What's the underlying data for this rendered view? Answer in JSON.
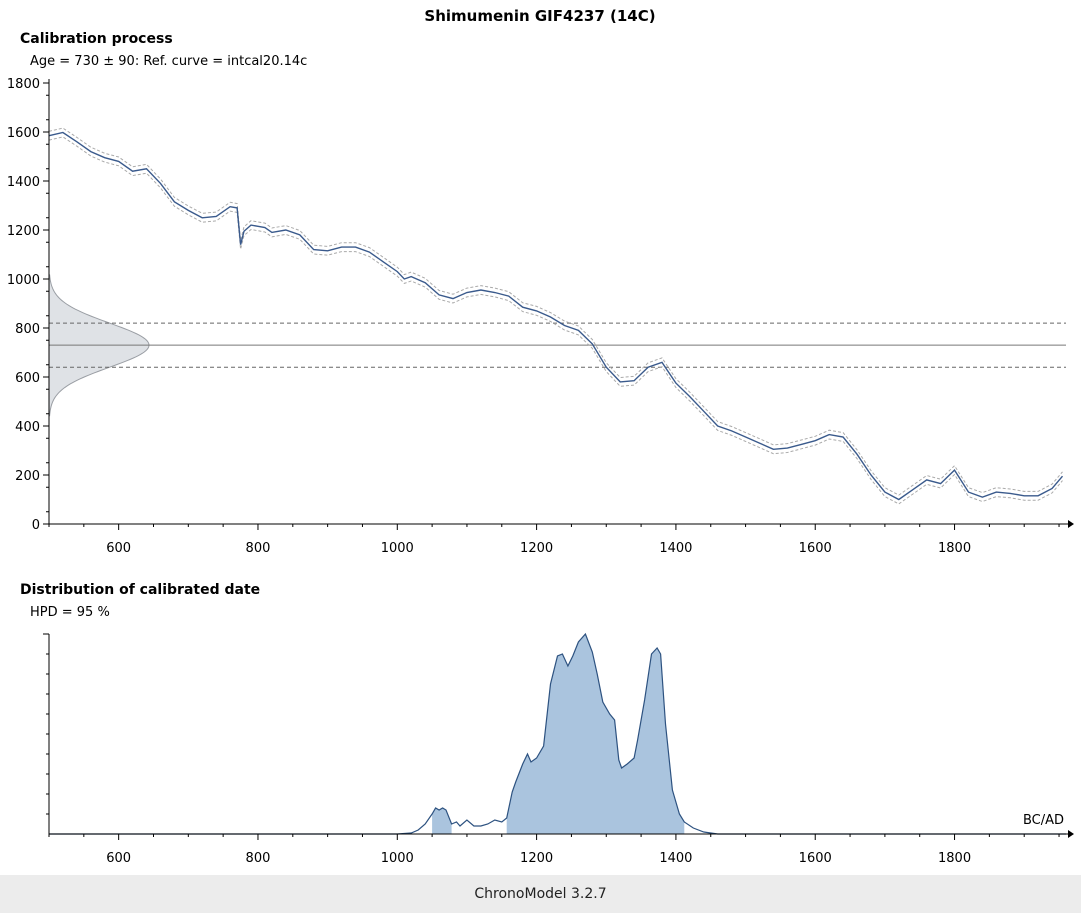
{
  "title": "Shimumenin GIF4237 (14C)",
  "footer": "ChronoModel 3.2.7",
  "axis_unit": "BC/AD",
  "colors": {
    "curve": "#3a5a8c",
    "density_fill": "#aac4de",
    "density_line": "#2d5280",
    "gauss_fill": "#dfe2e6",
    "axis": "#000000",
    "dash": "#666666",
    "curve_band": "#aaaaaa"
  },
  "chart_data": [
    {
      "type": "line",
      "title": "Calibration process",
      "subtitle": "Age = 730  ± 90: Ref. curve = intcal20.14c",
      "xlim": [
        500,
        1960
      ],
      "ylim": [
        0,
        1800
      ],
      "xticks": [
        600,
        800,
        1000,
        1200,
        1400,
        1600,
        1800
      ],
      "yticks": [
        0,
        200,
        400,
        600,
        800,
        1000,
        1200,
        1400,
        1600,
        1800
      ],
      "grid": false,
      "measured_age": 730,
      "age_error": 90,
      "age_bounds": [
        640,
        820
      ],
      "series": [
        {
          "x": [
            500,
            520,
            540,
            560,
            580,
            600,
            620,
            640,
            660,
            680,
            700,
            720,
            740,
            760,
            770,
            775,
            780,
            790,
            800,
            810,
            820,
            840,
            860,
            880,
            900,
            920,
            940,
            960,
            980,
            1000,
            1010,
            1020,
            1040,
            1060,
            1080,
            1100,
            1120,
            1140,
            1160,
            1180,
            1200,
            1220,
            1240,
            1260,
            1280,
            1300,
            1320,
            1340,
            1360,
            1380,
            1400,
            1420,
            1440,
            1460,
            1480,
            1500,
            1520,
            1540,
            1560,
            1580,
            1600,
            1620,
            1640,
            1660,
            1680,
            1700,
            1720,
            1740,
            1760,
            1780,
            1800,
            1820,
            1840,
            1860,
            1880,
            1900,
            1920,
            1940,
            1955
          ],
          "y": [
            1585,
            1598,
            1560,
            1520,
            1495,
            1480,
            1440,
            1450,
            1390,
            1315,
            1280,
            1250,
            1255,
            1295,
            1290,
            1140,
            1195,
            1220,
            1215,
            1210,
            1190,
            1200,
            1180,
            1120,
            1115,
            1130,
            1130,
            1110,
            1070,
            1030,
            1000,
            1010,
            985,
            935,
            920,
            945,
            955,
            945,
            930,
            885,
            870,
            845,
            810,
            790,
            735,
            640,
            580,
            585,
            640,
            660,
            575,
            520,
            460,
            400,
            380,
            355,
            330,
            305,
            310,
            325,
            340,
            365,
            355,
            285,
            200,
            130,
            100,
            140,
            180,
            165,
            220,
            130,
            110,
            130,
            125,
            115,
            115,
            145,
            195
          ]
        }
      ]
    },
    {
      "type": "area",
      "title": "Distribution of calibrated date",
      "subtitle": "HPD = 95 %",
      "xlim": [
        500,
        1960
      ],
      "xticks": [
        600,
        800,
        1000,
        1200,
        1400,
        1600,
        1800
      ],
      "x_axis_label": "BC/AD",
      "grid": false,
      "hpd_intervals": [
        [
          1050,
          1078
        ],
        [
          1157,
          1412
        ]
      ],
      "series": [
        {
          "x": [
            500,
            1000,
            1020,
            1030,
            1040,
            1050,
            1055,
            1060,
            1065,
            1070,
            1078,
            1085,
            1090,
            1100,
            1110,
            1120,
            1130,
            1140,
            1150,
            1157,
            1165,
            1170,
            1180,
            1187,
            1192,
            1200,
            1210,
            1220,
            1230,
            1237,
            1245,
            1252,
            1260,
            1270,
            1280,
            1287,
            1295,
            1305,
            1312,
            1318,
            1322,
            1330,
            1340,
            1345,
            1355,
            1365,
            1373,
            1378,
            1385,
            1395,
            1405,
            1412,
            1425,
            1440,
            1460,
            1960
          ],
          "y": [
            0,
            0,
            0.005,
            0.02,
            0.05,
            0.1,
            0.13,
            0.12,
            0.13,
            0.12,
            0.05,
            0.06,
            0.04,
            0.07,
            0.04,
            0.04,
            0.05,
            0.07,
            0.06,
            0.08,
            0.21,
            0.26,
            0.35,
            0.4,
            0.36,
            0.38,
            0.44,
            0.75,
            0.89,
            0.9,
            0.84,
            0.89,
            0.96,
            1.0,
            0.91,
            0.8,
            0.66,
            0.6,
            0.57,
            0.37,
            0.33,
            0.35,
            0.38,
            0.47,
            0.67,
            0.9,
            0.93,
            0.9,
            0.55,
            0.22,
            0.1,
            0.06,
            0.03,
            0.01,
            0,
            0
          ]
        }
      ]
    }
  ]
}
